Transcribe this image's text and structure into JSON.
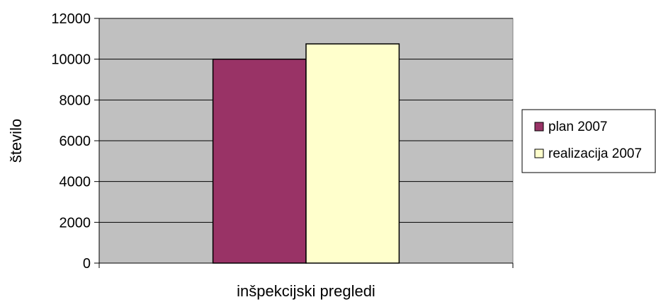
{
  "chart_data": {
    "type": "bar",
    "categories": [
      "inšpekcijski pregledi"
    ],
    "series": [
      {
        "name": "plan 2007",
        "values": [
          10000
        ],
        "color": "#993366"
      },
      {
        "name": "realizacija 2007",
        "values": [
          10750
        ],
        "color": "#FFFFCC"
      }
    ],
    "xlabel": "inšpekcijski pregledi",
    "ylabel": "število",
    "ylim": [
      0,
      12000
    ],
    "yticks": [
      "0",
      "2000",
      "4000",
      "6000",
      "8000",
      "10000",
      "12000"
    ],
    "grid": true,
    "plot_background": "#C0C0C0",
    "legend_position": "right"
  }
}
